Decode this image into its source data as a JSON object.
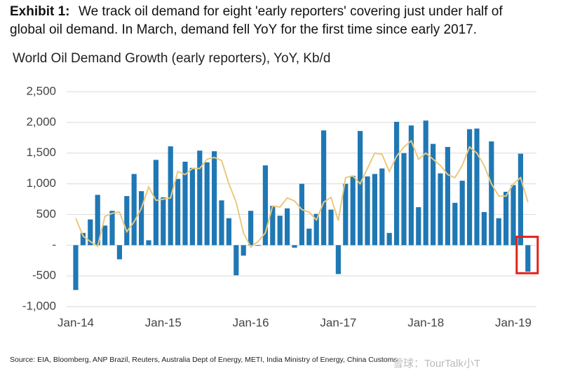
{
  "header": {
    "label": "Exhibit 1:",
    "lines": [
      "We track oil demand for eight 'early reporters' covering just under half of",
      "global oil demand. In March, demand fell YoY for the first time since early 2017."
    ]
  },
  "chart_data": {
    "type": "bar_line",
    "title": "World Oil Demand Growth (early reporters), YoY, Kb/d",
    "categories": [
      "Jan-14",
      null,
      null,
      null,
      null,
      null,
      null,
      null,
      null,
      null,
      null,
      null,
      "Jan-15",
      null,
      null,
      null,
      null,
      null,
      null,
      null,
      null,
      null,
      null,
      null,
      "Jan-16",
      null,
      null,
      null,
      null,
      null,
      null,
      null,
      null,
      null,
      null,
      null,
      "Jan-17",
      null,
      null,
      null,
      null,
      null,
      null,
      null,
      null,
      null,
      null,
      null,
      "Jan-18",
      null,
      null,
      null,
      null,
      null,
      null,
      null,
      null,
      null,
      null,
      null,
      "Jan-19",
      null,
      null
    ],
    "series": [
      {
        "kind": "bar",
        "color": "#1f78b4",
        "values": [
          -730,
          200,
          420,
          820,
          320,
          560,
          -230,
          800,
          1160,
          880,
          80,
          1390,
          780,
          1610,
          1080,
          1360,
          1260,
          1540,
          1350,
          1530,
          730,
          440,
          -490,
          -170,
          560,
          -10,
          1300,
          640,
          480,
          600,
          -40,
          1000,
          270,
          510,
          1870,
          580,
          -470,
          1000,
          1130,
          1860,
          1120,
          1160,
          1250,
          200,
          2010,
          1500,
          1950,
          620,
          2030,
          1650,
          1170,
          1600,
          690,
          1050,
          1890,
          1900,
          540,
          1690,
          440,
          870,
          980,
          1490,
          -430
        ]
      },
      {
        "kind": "line",
        "color": "#e9c97f",
        "values": [
          440,
          150,
          60,
          -20,
          470,
          520,
          540,
          220,
          380,
          600,
          950,
          730,
          750,
          770,
          1200,
          1150,
          1250,
          1250,
          1400,
          1430,
          1380,
          1000,
          700,
          200,
          -30,
          60,
          200,
          640,
          620,
          770,
          720,
          580,
          540,
          410,
          700,
          780,
          400,
          1100,
          1130,
          1000,
          1250,
          1500,
          1480,
          1200,
          1450,
          1600,
          1700,
          1400,
          1500,
          1400,
          1300,
          1150,
          1100,
          1300,
          1600,
          1500,
          1300,
          1000,
          800,
          800,
          1000,
          1100,
          700
        ]
      }
    ],
    "ylim": [
      -1000,
      2500
    ],
    "yticks": [
      {
        "value": -1000,
        "label": "-1,000"
      },
      -500,
      {
        "value": 0,
        "label": "-"
      },
      500,
      {
        "value": 1000,
        "label": "1,000"
      },
      {
        "value": 1500,
        "label": "1,500"
      },
      {
        "value": 2000,
        "label": "2,000"
      },
      {
        "value": 2500,
        "label": "2,500"
      }
    ],
    "grid": true,
    "highlight_index": 62,
    "highlight_color": "#e32119"
  },
  "source": "Source: EIA, Bloomberg, ANP Brazil, Reuters, Australia Dept of Energy, METI, India Ministry of Energy, China Customs",
  "watermark": "雪球：TourTalk小T"
}
